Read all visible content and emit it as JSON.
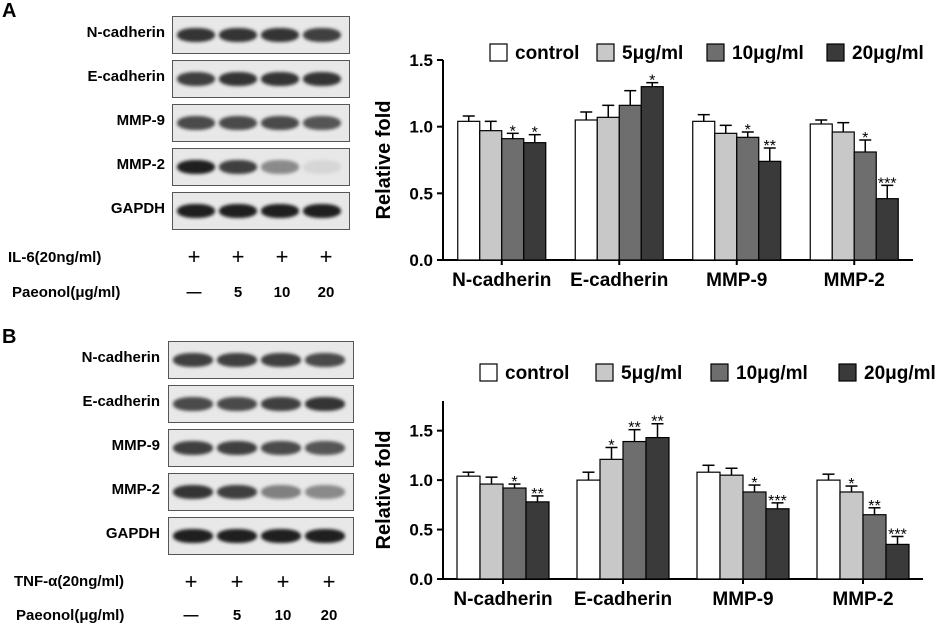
{
  "panels": [
    {
      "letter": "A",
      "blots": [
        "N-cadherin",
        "E-cadherin",
        "MMP-9",
        "MMP-2",
        "GAPDH"
      ],
      "treatment": "IL-6(20ng/ml)",
      "treatment_marks": [
        "+",
        "+",
        "+",
        "+"
      ],
      "paeonol_label": "Paeonol(μg/ml)",
      "paeonol_values": [
        "—",
        "5",
        "10",
        "20"
      ]
    },
    {
      "letter": "B",
      "blots": [
        "N-cadherin",
        "E-cadherin",
        "MMP-9",
        "MMP-2",
        "GAPDH"
      ],
      "treatment": "TNF-α(20ng/ml)",
      "treatment_marks": [
        "+",
        "+",
        "+",
        "+"
      ],
      "paeonol_label": "Paeonol(μg/ml)",
      "paeonol_values": [
        "—",
        "5",
        "10",
        "20"
      ]
    }
  ],
  "colors": {
    "control": "#ffffff",
    "5ug": "#c8c8c8",
    "10ug": "#6e6e6e",
    "20ug": "#3a3a3a"
  },
  "chart_data": [
    {
      "type": "bar",
      "title": "",
      "ylabel": "Relative fold",
      "ylim": [
        0,
        1.5
      ],
      "yticks": [
        "0.0",
        "0.5",
        "1.0",
        "1.5"
      ],
      "categories": [
        "N-cadherin",
        "E-cadherin",
        "MMP-9",
        "MMP-2"
      ],
      "legend_position": "top",
      "series": [
        {
          "name": "control",
          "values": [
            1.04,
            1.05,
            1.04,
            1.02
          ],
          "errors": [
            0.04,
            0.06,
            0.05,
            0.03
          ],
          "annotations": [
            "",
            "",
            "",
            ""
          ]
        },
        {
          "name": "5μg/ml",
          "values": [
            0.97,
            1.07,
            0.95,
            0.96
          ],
          "errors": [
            0.07,
            0.09,
            0.06,
            0.07
          ],
          "annotations": [
            "",
            "",
            "",
            ""
          ]
        },
        {
          "name": "10μg/ml",
          "values": [
            0.91,
            1.16,
            0.92,
            0.81
          ],
          "errors": [
            0.04,
            0.11,
            0.04,
            0.09
          ],
          "annotations": [
            "*",
            "",
            "*",
            "*"
          ]
        },
        {
          "name": "20μg/ml",
          "values": [
            0.88,
            1.3,
            0.74,
            0.46
          ],
          "errors": [
            0.06,
            0.03,
            0.1,
            0.1
          ],
          "annotations": [
            "*",
            "*",
            "**",
            "***"
          ]
        }
      ]
    },
    {
      "type": "bar",
      "title": "",
      "ylabel": "Relative fold",
      "ylim": [
        0,
        1.8
      ],
      "yticks": [
        "0.0",
        "0.5",
        "1.0",
        "1.5"
      ],
      "categories": [
        "N-cadherin",
        "E-cadherin",
        "MMP-9",
        "MMP-2"
      ],
      "legend_position": "top",
      "series": [
        {
          "name": "control",
          "values": [
            1.04,
            1.0,
            1.08,
            1.0
          ],
          "errors": [
            0.04,
            0.08,
            0.07,
            0.06
          ],
          "annotations": [
            "",
            "",
            "",
            ""
          ]
        },
        {
          "name": "5μg/ml",
          "values": [
            0.96,
            1.21,
            1.05,
            0.88
          ],
          "errors": [
            0.07,
            0.12,
            0.07,
            0.06
          ],
          "annotations": [
            "",
            "*",
            "",
            "*"
          ]
        },
        {
          "name": "10μg/ml",
          "values": [
            0.92,
            1.39,
            0.88,
            0.65
          ],
          "errors": [
            0.04,
            0.12,
            0.07,
            0.07
          ],
          "annotations": [
            "*",
            "**",
            "*",
            "**"
          ]
        },
        {
          "name": "20μg/ml",
          "values": [
            0.78,
            1.43,
            0.71,
            0.35
          ],
          "errors": [
            0.06,
            0.14,
            0.06,
            0.08
          ],
          "annotations": [
            "**",
            "**",
            "***",
            "***"
          ]
        }
      ]
    }
  ]
}
